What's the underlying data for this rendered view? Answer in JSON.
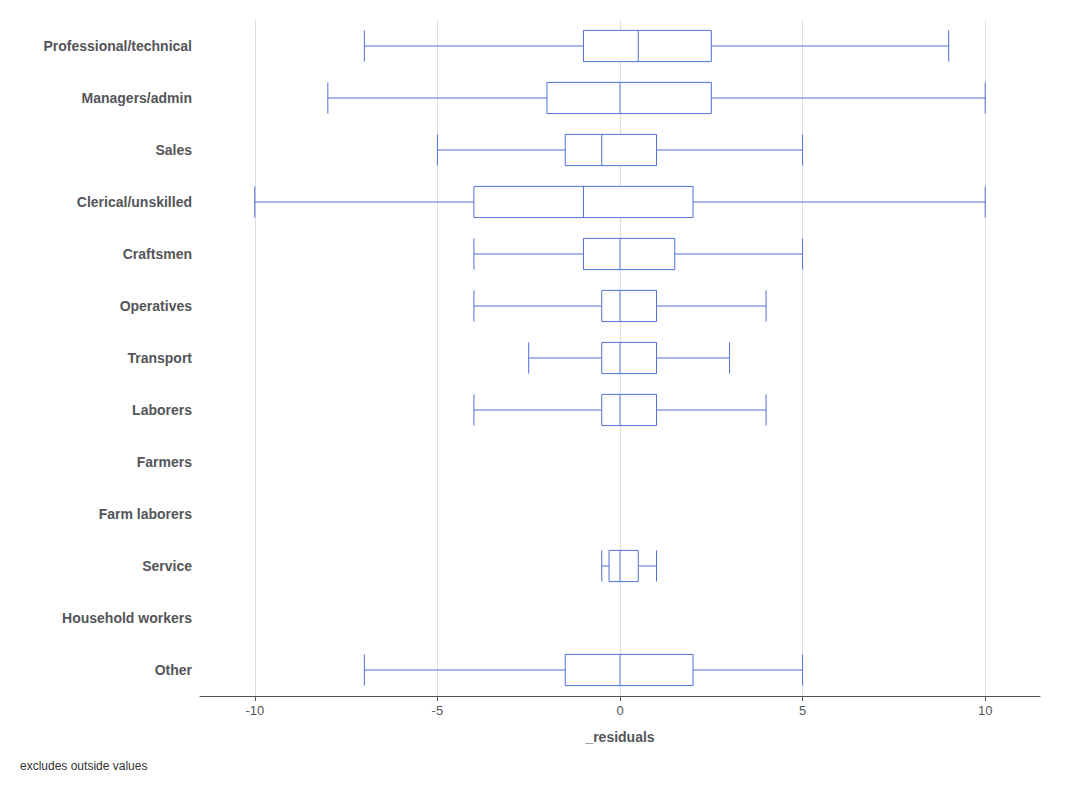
{
  "chart_data": {
    "type": "boxplot",
    "orientation": "horizontal",
    "categories": [
      "Professional/technical",
      "Managers/admin",
      "Sales",
      "Clerical/unskilled",
      "Craftsmen",
      "Operatives",
      "Transport",
      "Laborers",
      "Farmers",
      "Farm laborers",
      "Service",
      "Household workers",
      "Other"
    ],
    "values": [
      [
        -7.0,
        -1.0,
        0.5,
        2.5,
        9.0
      ],
      [
        -8.0,
        -2.0,
        0.0,
        2.5,
        10.0
      ],
      [
        -5.0,
        -1.5,
        -0.5,
        1.0,
        5.0
      ],
      [
        -10.0,
        -4.0,
        -1.0,
        2.0,
        10.0
      ],
      [
        -4.0,
        -1.0,
        0.0,
        1.5,
        5.0
      ],
      [
        -4.0,
        -0.5,
        0.0,
        1.0,
        4.0
      ],
      [
        -2.5,
        -0.5,
        0.0,
        1.0,
        3.0
      ],
      [
        -4.0,
        -0.5,
        0.0,
        1.0,
        4.0
      ],
      null,
      null,
      [
        -0.5,
        -0.3,
        0.0,
        0.5,
        1.0
      ],
      null,
      [
        -7.0,
        -1.5,
        0.0,
        2.0,
        5.0
      ]
    ],
    "xlabel": "_residuals",
    "xlim": [
      -11.5,
      11.5
    ],
    "xticks": [
      -10,
      -5,
      0,
      5,
      10
    ],
    "grid": true,
    "footnote": "excludes outside values"
  }
}
